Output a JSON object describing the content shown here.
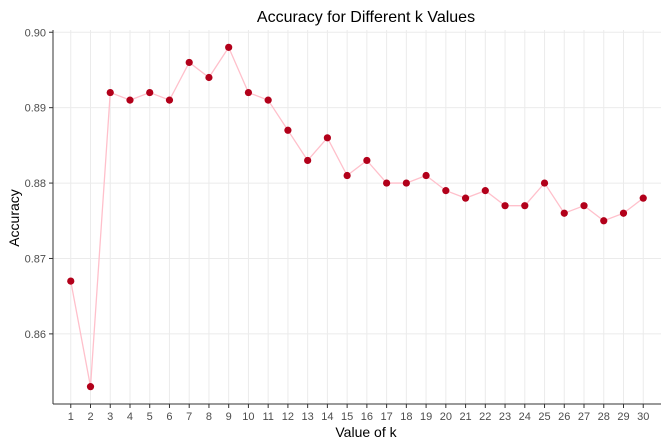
{
  "chart_data": {
    "type": "line",
    "title": "Accuracy for Different k Values",
    "xlabel": "Value of k",
    "ylabel": "Accuracy",
    "x": [
      1,
      2,
      3,
      4,
      5,
      6,
      7,
      8,
      9,
      10,
      11,
      12,
      13,
      14,
      15,
      16,
      17,
      18,
      19,
      20,
      21,
      22,
      23,
      24,
      25,
      26,
      27,
      28,
      29,
      30
    ],
    "series": [
      {
        "values": [
          0.867,
          0.853,
          0.892,
          0.891,
          0.892,
          0.891,
          0.896,
          0.894,
          0.898,
          0.892,
          0.891,
          0.887,
          0.883,
          0.886,
          0.881,
          0.883,
          0.88,
          0.88,
          0.881,
          0.879,
          0.878,
          0.879,
          0.877,
          0.877,
          0.88,
          0.876,
          0.877,
          0.875,
          0.876,
          0.878
        ]
      }
    ],
    "xlim": [
      0.1,
      30.9
    ],
    "ylim": [
      0.8507,
      0.9003
    ],
    "yticks": [
      0.86,
      0.87,
      0.88,
      0.89,
      0.9
    ],
    "ytick_labels": [
      "0.86",
      "0.87",
      "0.88",
      "0.89",
      "0.90"
    ],
    "grid": true,
    "line_color": "#ffc0cb",
    "point_color": "#b2001a",
    "grid_color": "#ebebeb",
    "axis_color": "#333333"
  }
}
